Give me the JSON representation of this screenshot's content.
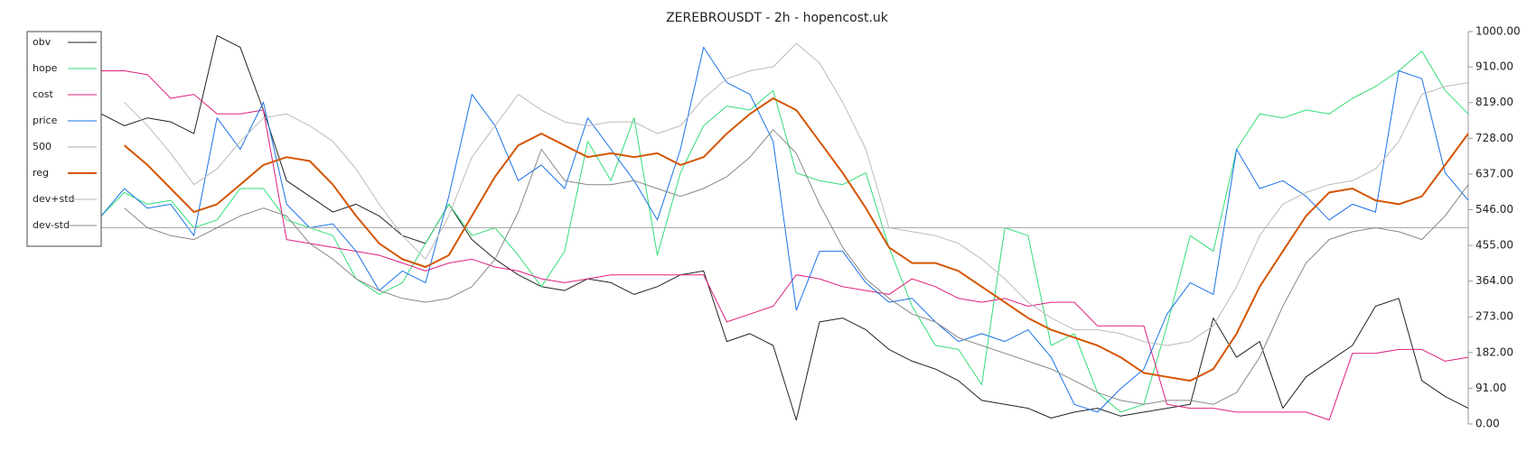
{
  "chart_data": {
    "type": "line",
    "title": "ZEREBROUSDT - 2h - hopencost.uk",
    "ylim": [
      0,
      1000
    ],
    "yticks": [
      {
        "value": 0,
        "label": "0.00"
      },
      {
        "value": 91,
        "label": "91.00"
      },
      {
        "value": 182,
        "label": "182.00"
      },
      {
        "value": 273,
        "label": "273.00"
      },
      {
        "value": 364,
        "label": "364.00"
      },
      {
        "value": 455,
        "label": "455.00"
      },
      {
        "value": 546,
        "label": "546.00"
      },
      {
        "value": 637,
        "label": "637.00"
      },
      {
        "value": 728,
        "label": "728.00"
      },
      {
        "value": 819,
        "label": "819.00"
      },
      {
        "value": 910,
        "label": "910.00"
      },
      {
        "value": 1000,
        "label": "1000.00"
      }
    ],
    "legend": "upper left",
    "series": [
      {
        "name": "obv",
        "color": "#222222",
        "width": 1,
        "values": [
          790,
          760,
          780,
          770,
          740,
          990,
          960,
          800,
          620,
          580,
          540,
          560,
          530,
          480,
          460,
          560,
          470,
          420,
          380,
          350,
          340,
          370,
          360,
          330,
          350,
          380,
          390,
          210,
          230,
          200,
          10,
          260,
          270,
          240,
          190,
          160,
          140,
          110,
          60,
          50,
          40,
          15,
          30,
          40,
          20,
          30,
          40,
          50,
          270,
          170,
          210,
          40,
          120,
          160,
          200,
          300,
          320,
          110,
          70,
          40
        ]
      },
      {
        "name": "hope",
        "color": "#33dd77",
        "width": 1,
        "values": [
          530,
          590,
          560,
          570,
          500,
          520,
          600,
          600,
          520,
          500,
          480,
          370,
          330,
          360,
          460,
          560,
          480,
          500,
          430,
          350,
          440,
          720,
          620,
          780,
          430,
          640,
          760,
          810,
          800,
          850,
          640,
          620,
          610,
          640,
          450,
          300,
          200,
          190,
          100,
          500,
          480,
          200,
          230,
          80,
          30,
          50,
          250,
          480,
          440,
          700,
          790,
          780,
          800,
          790,
          830,
          860,
          900,
          950,
          850,
          790
        ]
      },
      {
        "name": "cost",
        "color": "#e0207f",
        "width": 1,
        "values": [
          900,
          900,
          890,
          830,
          840,
          790,
          790,
          800,
          470,
          460,
          450,
          440,
          430,
          410,
          390,
          410,
          420,
          400,
          390,
          370,
          360,
          370,
          380,
          380,
          380,
          380,
          380,
          260,
          280,
          300,
          380,
          370,
          350,
          340,
          330,
          370,
          350,
          320,
          310,
          320,
          300,
          310,
          310,
          250,
          250,
          250,
          50,
          40,
          40,
          30,
          30,
          30,
          30,
          10,
          180,
          180,
          190,
          190,
          160,
          170
        ]
      },
      {
        "name": "price",
        "color": "#1a73e8",
        "width": 1,
        "values": [
          530,
          600,
          550,
          560,
          480,
          780,
          700,
          820,
          560,
          500,
          510,
          440,
          340,
          390,
          360,
          580,
          840,
          760,
          620,
          660,
          600,
          780,
          700,
          620,
          520,
          700,
          960,
          870,
          840,
          720,
          290,
          440,
          440,
          360,
          310,
          320,
          260,
          210,
          230,
          210,
          240,
          170,
          50,
          30,
          90,
          140,
          280,
          360,
          330,
          700,
          600,
          620,
          580,
          520,
          560,
          540,
          900,
          880,
          640,
          570
        ]
      },
      {
        "name": "500",
        "color": "#aaaaaa",
        "width": 1,
        "value": 500
      },
      {
        "name": "reg",
        "color": "#d45500",
        "width": 2,
        "values": [
          null,
          710,
          660,
          600,
          540,
          560,
          610,
          660,
          680,
          670,
          610,
          530,
          460,
          420,
          400,
          430,
          530,
          630,
          710,
          740,
          710,
          680,
          690,
          680,
          690,
          660,
          680,
          740,
          790,
          830,
          800,
          720,
          640,
          550,
          450,
          410,
          410,
          390,
          350,
          310,
          270,
          240,
          220,
          200,
          170,
          130,
          120,
          110,
          140,
          230,
          350,
          440,
          530,
          590,
          600,
          570,
          560,
          580,
          660,
          740
        ]
      },
      {
        "name": "dev+std",
        "color": "#bbbbbb",
        "width": 1,
        "values": [
          null,
          820,
          760,
          690,
          610,
          650,
          720,
          780,
          790,
          760,
          720,
          650,
          560,
          480,
          420,
          530,
          680,
          760,
          840,
          800,
          770,
          760,
          770,
          770,
          740,
          760,
          830,
          880,
          900,
          910,
          970,
          920,
          820,
          700,
          500,
          490,
          480,
          460,
          420,
          370,
          310,
          270,
          240,
          240,
          230,
          210,
          200,
          210,
          250,
          350,
          480,
          560,
          590,
          610,
          620,
          650,
          720,
          840,
          860,
          870
        ]
      },
      {
        "name": "dev-std",
        "color": "#888888",
        "width": 1,
        "values": [
          null,
          550,
          500,
          480,
          470,
          500,
          530,
          550,
          530,
          460,
          420,
          370,
          340,
          320,
          310,
          320,
          350,
          420,
          540,
          700,
          620,
          610,
          610,
          620,
          600,
          580,
          600,
          630,
          680,
          750,
          690,
          560,
          450,
          370,
          320,
          280,
          260,
          220,
          200,
          180,
          160,
          140,
          110,
          80,
          60,
          50,
          60,
          60,
          50,
          80,
          170,
          300,
          410,
          470,
          490,
          500,
          490,
          470,
          530,
          610
        ]
      }
    ]
  }
}
